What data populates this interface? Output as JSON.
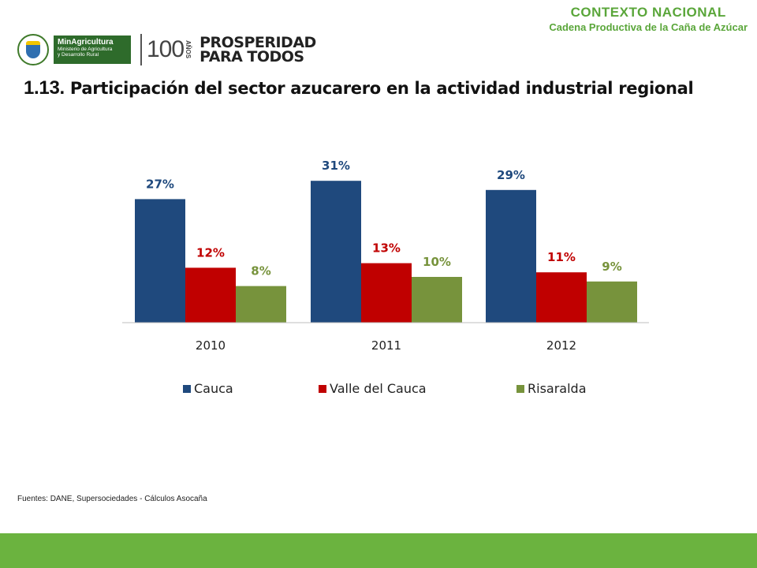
{
  "header": {
    "section": "CONTEXTO NACIONAL",
    "subsection": "Cadena Productiva de la Caña de Azúcar"
  },
  "logos": {
    "ministry_title": "MinAgricultura",
    "ministry_sub1": "Ministerio de Agricultura",
    "ministry_sub2": "y Desarrollo Rural",
    "centenary_number": "100",
    "centenary_word": "AÑOS",
    "slogan_line1": "PROSPERIDAD",
    "slogan_line2": "PARA TODOS"
  },
  "title": {
    "number": "1.13.",
    "text": " Participación del sector azucarero en la actividad industrial regional"
  },
  "source": "Fuentes: DANE, Supersociedades -  Cálculos Asocaña",
  "colors": {
    "cauca": "#1f497d",
    "valle": "#c00000",
    "risaralda": "#77933c",
    "footer": "#6bb33f",
    "header_green": "#5aa63a"
  },
  "chart_data": {
    "type": "bar",
    "categories": [
      "2010",
      "2011",
      "2012"
    ],
    "series": [
      {
        "name": "Cauca",
        "values": [
          27,
          31,
          29
        ],
        "labels": [
          "27%",
          "31%",
          "29%"
        ],
        "color": "#1f497d"
      },
      {
        "name": "Valle del Cauca",
        "values": [
          12,
          13,
          11
        ],
        "labels": [
          "12%",
          "13%",
          "11%"
        ],
        "color": "#c00000"
      },
      {
        "name": "Risaralda",
        "values": [
          8,
          10,
          9
        ],
        "labels": [
          "8%",
          "10%",
          "9%"
        ],
        "color": "#77933c"
      }
    ],
    "unit": "%",
    "ylim": [
      0,
      35
    ],
    "grid": false,
    "legend": "bottom"
  }
}
